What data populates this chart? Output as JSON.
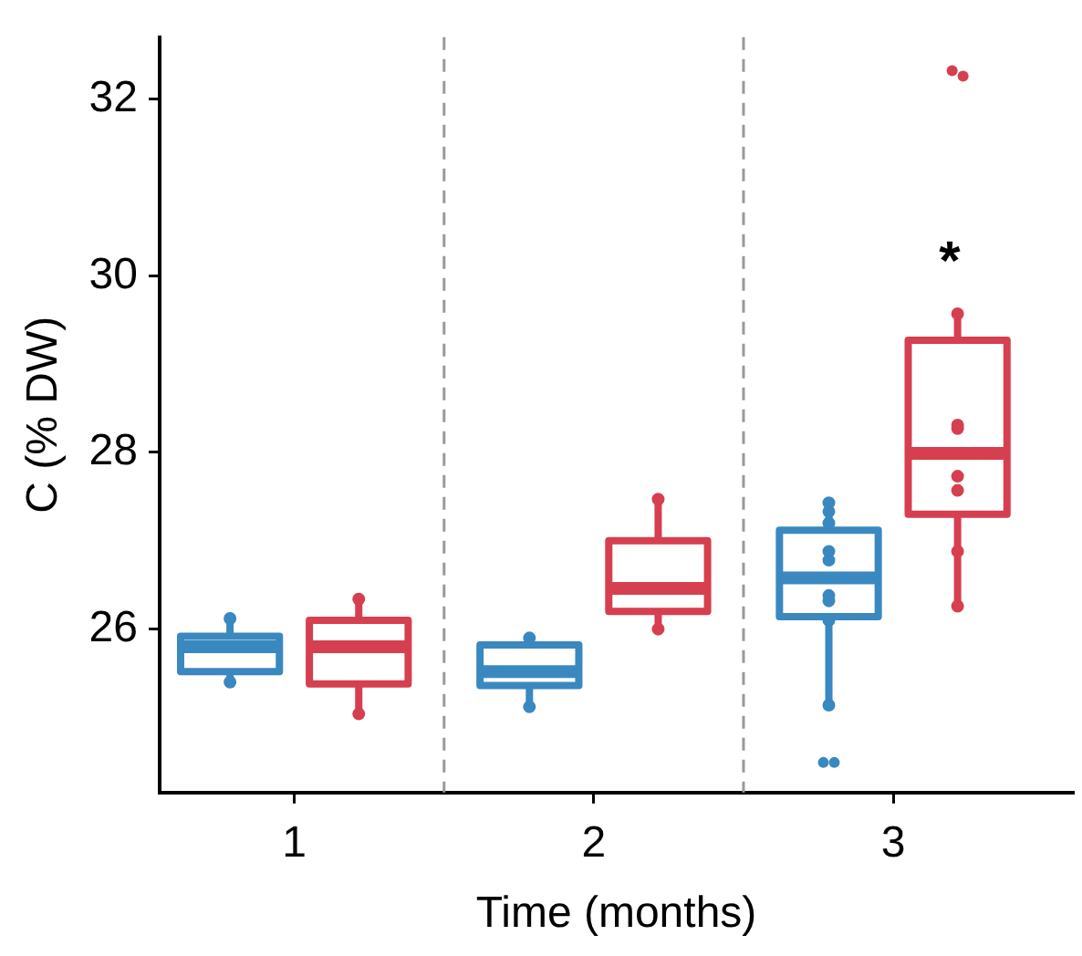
{
  "chart_data": {
    "type": "box",
    "xlabel": "Time (months)",
    "ylabel": "C (% DW)",
    "x": [
      1,
      2,
      3
    ],
    "xlim": [
      0.55,
      3.6
    ],
    "xticks": [
      1,
      2,
      3
    ],
    "ylim": [
      24.15,
      32.7
    ],
    "yticks": [
      26,
      28,
      30,
      32
    ],
    "grid": false,
    "legend": false,
    "series": [
      {
        "color": "#3a88c0",
        "boxes": [
          {
            "low": 25.4,
            "q1": 25.52,
            "median": 25.8,
            "q3": 25.92,
            "high": 26.12
          },
          {
            "low": 25.12,
            "q1": 25.36,
            "median": 25.52,
            "q3": 25.82,
            "high": 25.88
          },
          {
            "low": 25.14,
            "q1": 26.14,
            "median": 26.58,
            "q3": 27.12,
            "high": 27.43,
            "outliers": [
              24.49,
              24.49
            ]
          }
        ]
      },
      {
        "color": "#d63f50",
        "boxes": [
          {
            "low": 25.04,
            "q1": 25.38,
            "median": 25.8,
            "q3": 26.1,
            "high": 26.34
          },
          {
            "low": 26.0,
            "q1": 26.2,
            "median": 26.46,
            "q3": 27.0,
            "high": 27.47
          },
          {
            "low": 26.26,
            "q1": 27.3,
            "median": 27.99,
            "q3": 29.27,
            "high": 29.57,
            "outliers": [
              32.32,
              32.26
            ]
          }
        ]
      },
      {
        "type": "scatter",
        "color": "#3a88c0",
        "x": [
          0.785,
          0.785,
          1.785,
          1.785,
          2.785,
          2.785,
          2.785,
          2.785,
          2.785,
          2.785,
          2.785,
          2.785,
          2.785
        ],
        "values": [
          26.12,
          25.4,
          25.9,
          25.12,
          27.43,
          27.33,
          27.2,
          26.88,
          26.78,
          26.38,
          26.32,
          26.1,
          25.14
        ]
      },
      {
        "type": "scatter",
        "color": "#d63f50",
        "x": [
          1.215,
          1.215,
          2.215,
          2.215,
          3.215,
          3.215,
          3.215,
          3.215,
          3.215,
          3.215,
          3.215
        ],
        "values": [
          26.34,
          25.04,
          27.47,
          26.0,
          29.57,
          28.31,
          28.27,
          27.73,
          27.57,
          26.88,
          26.26
        ]
      }
    ],
    "ref_lines": [
      {
        "axis": "x",
        "value": 1.5,
        "color": "#999999",
        "line_style": "dashed"
      },
      {
        "axis": "x",
        "value": 2.5,
        "color": "#999999",
        "line_style": "dashed"
      }
    ],
    "annotations": [
      "*"
    ]
  }
}
